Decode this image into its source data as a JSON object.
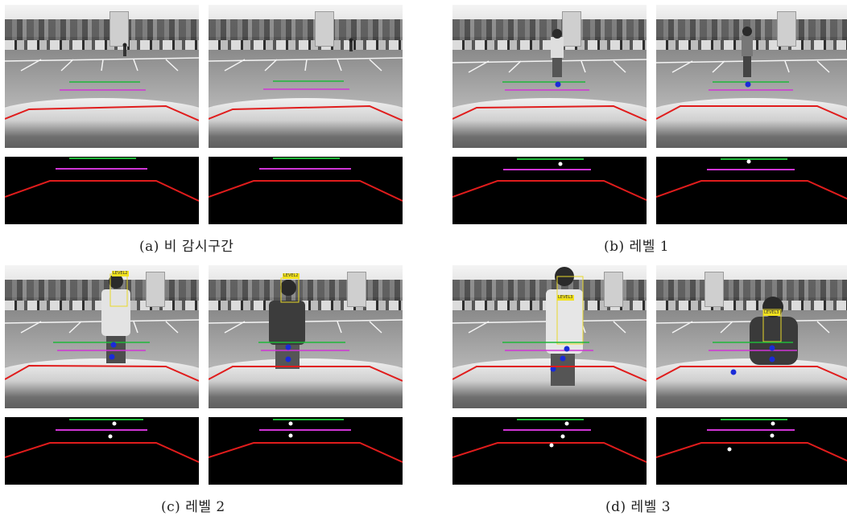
{
  "captions": {
    "a": "(a) 비 감시구간",
    "b": "(b) 레벨 1",
    "c": "(c) 레벨 2",
    "d": "(d) 레벨 3"
  },
  "tags": {
    "c2": "LEVEL2",
    "d1": "LEVEL3",
    "d2": "LEVEL3"
  },
  "colors": {
    "green_line": "#1fb83a",
    "magenta_line": "#d035d6",
    "red_line": "#e01c1c",
    "blue_point": "#1a2bd8",
    "white_point": "#ffffff",
    "tag": "#f2e21e"
  }
}
